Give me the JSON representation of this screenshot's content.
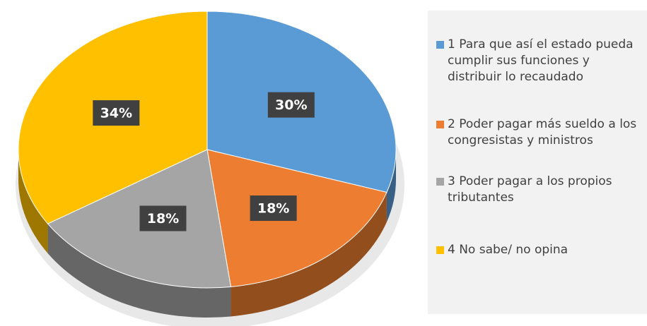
{
  "chart_data": {
    "type": "pie",
    "categories": [
      "1 Para que así el estado pueda cumplir sus funciones y distribuir lo recaudado",
      "2 Poder pagar más sueldo a los congresistas y ministros",
      "3 Poder pagar a los propios tributantes",
      "4 No sabe/ no opina"
    ],
    "values": [
      30,
      18,
      18,
      34
    ],
    "value_labels": [
      "30%",
      "18%",
      "18%",
      "34%"
    ],
    "colors": [
      "#5b9bd5",
      "#ed7d31",
      "#a5a5a5",
      "#ffc000"
    ],
    "legend": "right"
  }
}
